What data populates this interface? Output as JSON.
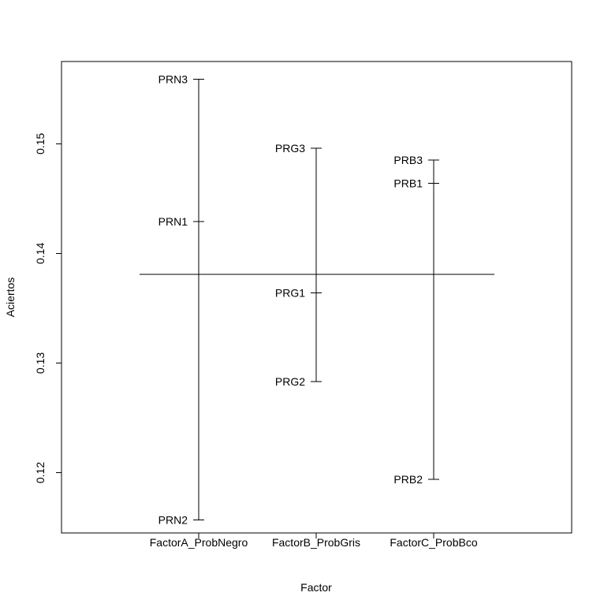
{
  "chart_data": {
    "type": "factor-plot",
    "title": "",
    "xlabel": "Factor",
    "ylabel": "Aciertos",
    "ylim": [
      0.1145,
      0.1575
    ],
    "yticks": [
      0.12,
      0.13,
      0.14,
      0.15
    ],
    "ytick_labels": [
      "0.12",
      "0.13",
      "0.14",
      "0.15"
    ],
    "grand_mean": 0.1381,
    "factors": [
      {
        "name": "FactorA_ProbNegro",
        "levels": [
          {
            "label": "PRN3",
            "value": 0.1559
          },
          {
            "label": "PRN1",
            "value": 0.1429
          },
          {
            "label": "PRN2",
            "value": 0.1157
          }
        ]
      },
      {
        "name": "FactorB_ProbGris",
        "levels": [
          {
            "label": "PRG3",
            "value": 0.1496
          },
          {
            "label": "PRG1",
            "value": 0.1364
          },
          {
            "label": "PRG2",
            "value": 0.1283
          }
        ]
      },
      {
        "name": "FactorC_ProbBco",
        "levels": [
          {
            "label": "PRB3",
            "value": 0.1485
          },
          {
            "label": "PRB1",
            "value": 0.1464
          },
          {
            "label": "PRB2",
            "value": 0.1194
          }
        ]
      }
    ]
  }
}
